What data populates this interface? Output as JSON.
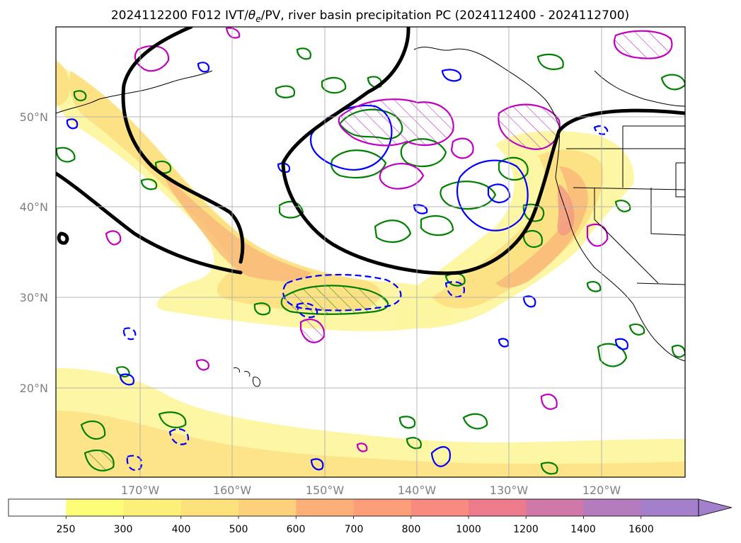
{
  "title_main": "2024112200 F012 IVT/",
  "title_theta": "θ",
  "title_sub": "e",
  "title_rest": "/PV, river basin precipitation PC (2024112400 - 2024112700)",
  "lat_labels": [
    "50°N",
    "40°N",
    "30°N",
    "20°N"
  ],
  "lon_labels": [
    "170°W",
    "160°W",
    "150°W",
    "140°W",
    "130°W",
    "120°W"
  ],
  "colorbar": {
    "levels": [
      "250",
      "300",
      "400",
      "500",
      "600",
      "700",
      "800",
      "1000",
      "1200",
      "1400",
      "1600"
    ],
    "colors": [
      "#ffffff",
      "#fdfd78",
      "#fdf07a",
      "#fde27c",
      "#fdd07c",
      "#fcb078",
      "#fc9f78",
      "#f98a80",
      "#ec7c8c",
      "#d078a8",
      "#b47cbc",
      "#a480cc"
    ]
  },
  "colors": {
    "ivt_low": "#fdf6a0",
    "ivt_mid": "#fde082",
    "ivt_high": "#f9b878",
    "ivt_core": "#f29a82",
    "theta_contour": "#000000",
    "green_contour": "#008000",
    "blue_contour": "#0000ff",
    "magenta_contour": "#c000c0",
    "grid": "#b0b0b0"
  }
}
